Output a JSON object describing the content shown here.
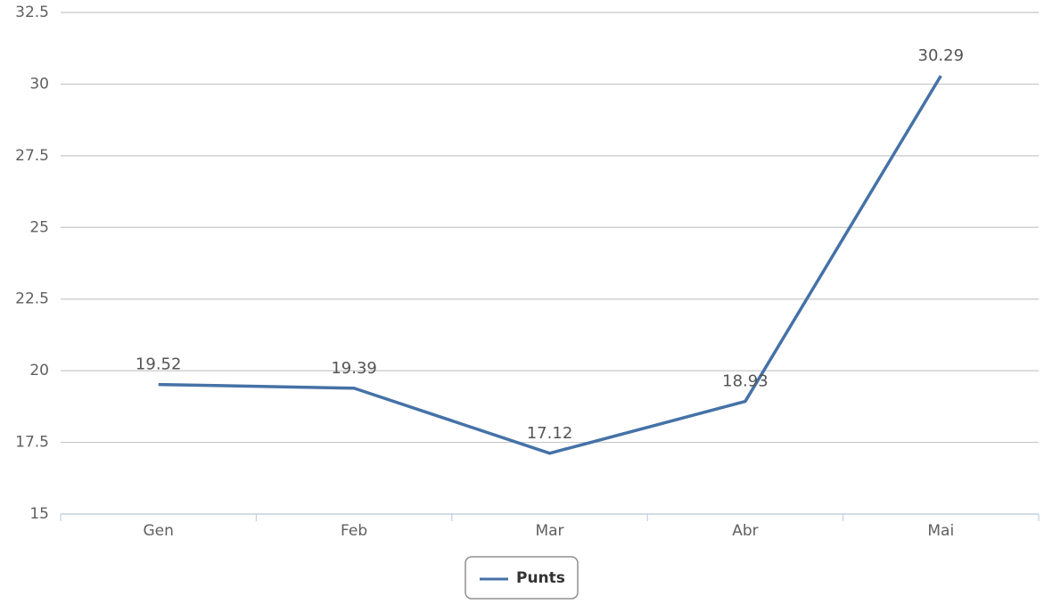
{
  "chart_data": {
    "type": "line",
    "categories": [
      "Gen",
      "Feb",
      "Mar",
      "Abr",
      "Mai"
    ],
    "series": [
      {
        "name": "Punts",
        "color": "#4572a7",
        "values": [
          19.52,
          19.39,
          17.12,
          18.93,
          30.29
        ]
      }
    ],
    "ylim": [
      15,
      32.5
    ],
    "yticks": [
      15,
      17.5,
      20,
      22.5,
      25,
      27.5,
      30,
      32.5
    ],
    "grid": true,
    "legend": "bottom",
    "data_labels": true
  }
}
